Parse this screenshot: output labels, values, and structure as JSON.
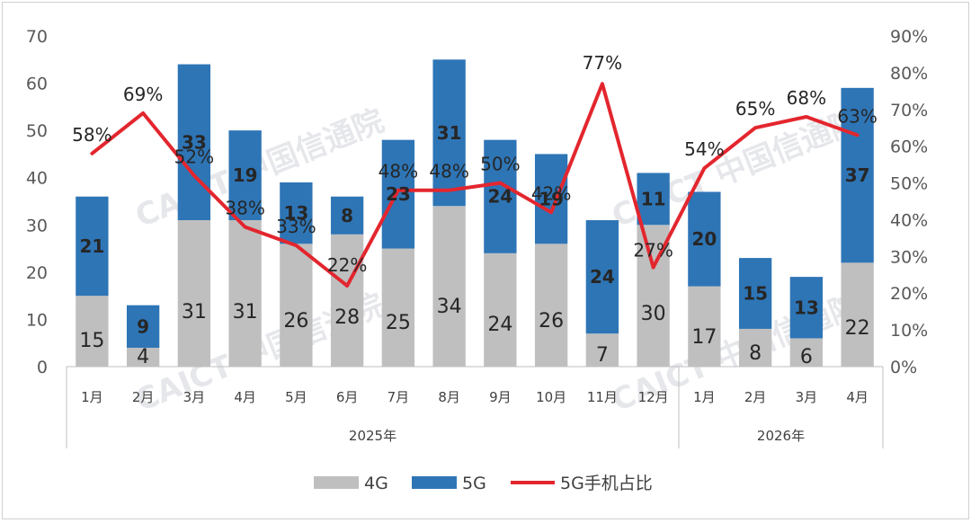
{
  "chart_data": {
    "type": "bar",
    "stacked": true,
    "categories": [
      "1月",
      "2月",
      "3月",
      "4月",
      "5月",
      "6月",
      "7月",
      "8月",
      "9月",
      "10月",
      "11月",
      "12月",
      "1月",
      "2月",
      "3月",
      "4月"
    ],
    "groups": [
      {
        "label": "2025年",
        "count": 12
      },
      {
        "label": "2026年",
        "count": 4
      }
    ],
    "series": [
      {
        "name": "4G",
        "type": "bar",
        "axis": "left",
        "color": "#bfbfbf",
        "values": [
          15,
          4,
          31,
          31,
          26,
          28,
          25,
          34,
          24,
          26,
          7,
          30,
          17,
          8,
          6,
          22
        ]
      },
      {
        "name": "5G",
        "type": "bar",
        "axis": "left",
        "color": "#2e75b6",
        "values": [
          21,
          9,
          33,
          19,
          13,
          8,
          23,
          31,
          24,
          19,
          24,
          11,
          20,
          15,
          13,
          37
        ]
      },
      {
        "name": "5G手机占比",
        "type": "line",
        "axis": "right",
        "color": "#e3262e",
        "values": [
          58,
          69,
          52,
          38,
          33,
          22,
          48,
          48,
          50,
          42,
          77,
          27,
          54,
          65,
          68,
          63
        ],
        "labels": [
          "58%",
          "69%",
          "52%",
          "38%",
          "33%",
          "22%",
          "48%",
          "48%",
          "50%",
          "42%",
          "77%",
          "27%",
          "54%",
          "65%",
          "68%",
          "63%"
        ]
      }
    ],
    "left_axis": {
      "min": 0,
      "max": 70,
      "step": 10,
      "ticks": [
        "0",
        "10",
        "20",
        "30",
        "40",
        "50",
        "60",
        "70"
      ]
    },
    "right_axis": {
      "min": 0,
      "max": 90,
      "step": 10,
      "ticks": [
        "0%",
        "10%",
        "20%",
        "30%",
        "40%",
        "50%",
        "60%",
        "70%",
        "80%",
        "90%"
      ]
    },
    "grid": false,
    "legend_position": "bottom",
    "watermark": "CAICT 中国信通院"
  }
}
